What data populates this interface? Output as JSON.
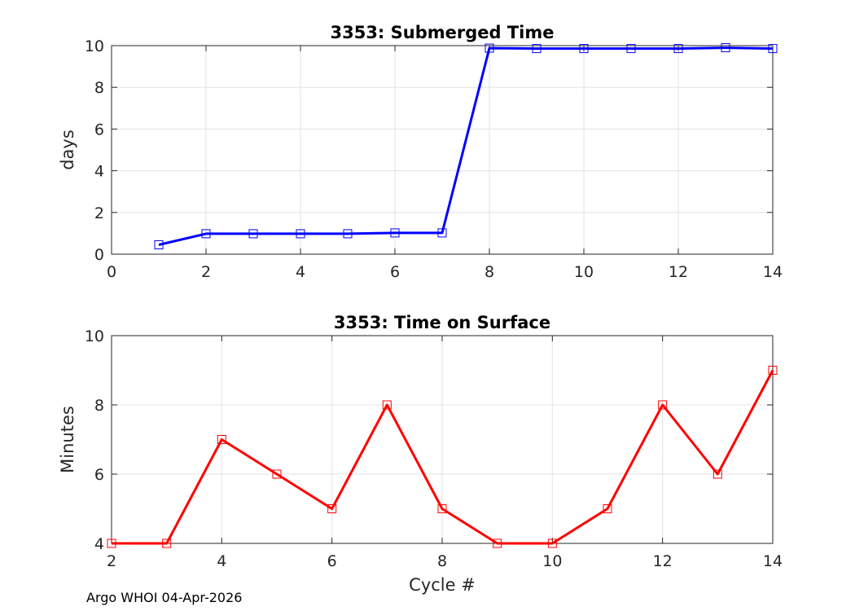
{
  "footer_text": "Argo WHOI 04-Apr-2026",
  "chart_data": [
    {
      "type": "line",
      "title": "3353: Submerged Time",
      "xlabel": "",
      "ylabel": "days",
      "xlim": [
        0,
        14
      ],
      "ylim": [
        0,
        10
      ],
      "xticks": [
        0,
        2,
        4,
        6,
        8,
        10,
        12,
        14
      ],
      "yticks": [
        0,
        2,
        4,
        6,
        8,
        10
      ],
      "grid": true,
      "marker": "square",
      "series": [
        {
          "color": "#0000ff",
          "x": [
            1,
            2,
            3,
            4,
            5,
            6,
            7,
            8,
            9,
            10,
            11,
            12,
            13,
            14
          ],
          "y": [
            0.45,
            0.98,
            0.98,
            0.98,
            0.98,
            1.02,
            1.02,
            9.88,
            9.86,
            9.86,
            9.86,
            9.86,
            9.9,
            9.86
          ]
        }
      ]
    },
    {
      "type": "line",
      "title": "3353: Time on Surface",
      "xlabel": "Cycle #",
      "ylabel": "Minutes",
      "xlim": [
        2,
        14
      ],
      "ylim": [
        4,
        10
      ],
      "xticks": [
        2,
        4,
        6,
        8,
        10,
        12,
        14
      ],
      "yticks": [
        4,
        6,
        8,
        10
      ],
      "grid": true,
      "marker": "square",
      "series": [
        {
          "color": "#ff0000",
          "x": [
            2,
            3,
            4,
            5,
            6,
            7,
            8,
            9,
            10,
            11,
            12,
            13,
            14
          ],
          "y": [
            4,
            4,
            7,
            6,
            5,
            8,
            5,
            4,
            4,
            5,
            8,
            6,
            9
          ]
        }
      ]
    }
  ]
}
